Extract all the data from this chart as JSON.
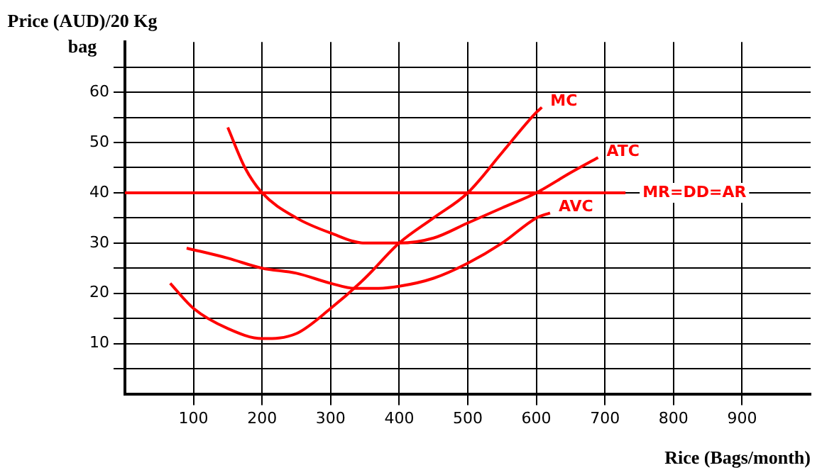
{
  "chart_data": {
    "type": "line",
    "xlabel": "Rice (Bags/month)",
    "ylabel": "Price (AUD)/20 Kg bag",
    "xlim": [
      0,
      1000
    ],
    "xticks": [
      100,
      200,
      300,
      400,
      500,
      600,
      700,
      800,
      900
    ],
    "ylim": [
      0,
      70
    ],
    "yticks": [
      {
        "value": 5,
        "label": null
      },
      10,
      {
        "value": 15,
        "label": null
      },
      20,
      {
        "value": 25,
        "label": null
      },
      30,
      {
        "value": 35,
        "label": null
      },
      40,
      {
        "value": 45,
        "label": null
      },
      50,
      {
        "value": 55,
        "label": null
      },
      60,
      {
        "value": 65,
        "label": null
      }
    ],
    "grid": true,
    "legend": false,
    "marker": "none",
    "line_style": "solid",
    "series": [
      {
        "name": "MC",
        "color": "#ff0000",
        "x": [
          66,
          100,
          150,
          200,
          250,
          300,
          350,
          400,
          450,
          500,
          550,
          600,
          608
        ],
        "values": [
          22,
          17,
          13,
          11,
          12,
          17,
          23,
          30,
          35,
          40,
          48,
          56,
          57
        ]
      },
      {
        "name": "ATC",
        "color": "#ff0000",
        "x": [
          150,
          175,
          200,
          250,
          300,
          350,
          400,
          450,
          500,
          550,
          600,
          650,
          690
        ],
        "values": [
          53,
          45,
          40,
          35,
          32,
          30,
          30,
          31,
          34,
          37,
          40,
          44,
          47
        ]
      },
      {
        "name": "AVC",
        "color": "#ff0000",
        "x": [
          90,
          150,
          200,
          250,
          300,
          335,
          370,
          400,
          450,
          500,
          550,
          600,
          620
        ],
        "values": [
          29,
          27,
          25,
          24,
          22,
          21,
          21,
          21.4,
          23,
          26,
          30,
          35,
          36
        ]
      },
      {
        "name": "MR=DD=AR",
        "color": "#ff0000",
        "x": [
          0,
          730
        ],
        "values": [
          40,
          40
        ]
      }
    ]
  }
}
